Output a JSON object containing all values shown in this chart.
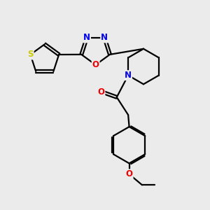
{
  "bg_color": "#ebebeb",
  "bond_color": "#000000",
  "bond_width": 1.6,
  "atom_colors": {
    "S": "#cccc00",
    "N": "#0000ee",
    "O": "#ee0000",
    "C": "#000000"
  },
  "font_size": 8.5,
  "fig_size": [
    3.0,
    3.0
  ],
  "dpi": 100
}
